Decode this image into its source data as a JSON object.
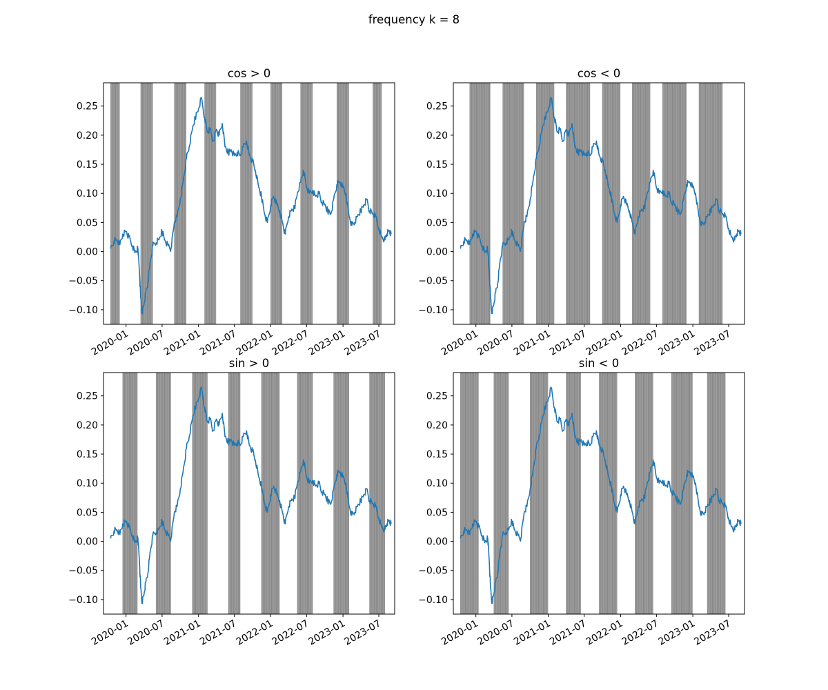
{
  "suptitle": "frequency k = 8",
  "colors": {
    "line": "#1f77b4",
    "shade": "#808080",
    "axes": "#000000"
  },
  "chart_data": [
    {
      "type": "line",
      "title": "cos > 0",
      "xlim": [
        "2019-09-09",
        "2023-09-19"
      ],
      "ylim": [
        -0.125,
        0.29
      ],
      "x_ticks": [
        "2020-01",
        "2020-07",
        "2021-01",
        "2021-07",
        "2022-01",
        "2022-07",
        "2023-01",
        "2023-07"
      ],
      "y_ticks": [
        "0.25",
        "0.20",
        "0.15",
        "0.10",
        "0.05",
        "0.00",
        "−0.05",
        "−0.10"
      ],
      "shaded_periods": [
        [
          "2019-10-15",
          "2019-11-30"
        ],
        [
          "2020-03-15",
          "2020-05-15"
        ],
        [
          "2020-09-01",
          "2020-10-31"
        ],
        [
          "2021-02-01",
          "2021-03-31"
        ],
        [
          "2021-08-01",
          "2021-09-30"
        ],
        [
          "2022-01-01",
          "2022-02-28"
        ],
        [
          "2022-06-01",
          "2022-07-31"
        ],
        [
          "2022-12-01",
          "2023-01-31"
        ],
        [
          "2023-06-01",
          "2023-07-15"
        ]
      ]
    },
    {
      "type": "line",
      "title": "cos < 0",
      "xlim": [
        "2019-09-09",
        "2023-09-19"
      ],
      "ylim": [
        -0.125,
        0.29
      ],
      "x_ticks": [
        "2020-01",
        "2020-07",
        "2021-01",
        "2021-07",
        "2022-01",
        "2022-07",
        "2023-01",
        "2023-07"
      ],
      "y_ticks": [
        "0.25",
        "0.20",
        "0.15",
        "0.10",
        "0.05",
        "0.00",
        "−0.05",
        "−0.10"
      ],
      "shaded_periods": [
        [
          "2019-12-01",
          "2020-03-14"
        ],
        [
          "2020-05-16",
          "2020-08-31"
        ],
        [
          "2020-11-01",
          "2021-01-31"
        ],
        [
          "2021-04-01",
          "2021-07-31"
        ],
        [
          "2021-10-01",
          "2021-12-31"
        ],
        [
          "2022-03-01",
          "2022-05-31"
        ],
        [
          "2022-08-01",
          "2022-11-30"
        ],
        [
          "2023-02-01",
          "2023-05-31"
        ]
      ]
    },
    {
      "type": "line",
      "title": "sin > 0",
      "xlim": [
        "2019-09-09",
        "2023-09-19"
      ],
      "ylim": [
        -0.125,
        0.29
      ],
      "x_ticks": [
        "2020-01",
        "2020-07",
        "2021-01",
        "2021-07",
        "2022-01",
        "2022-07",
        "2023-01",
        "2023-07"
      ],
      "y_ticks": [
        "0.25",
        "0.20",
        "0.15",
        "0.10",
        "0.05",
        "0.00",
        "−0.05",
        "−0.10"
      ],
      "shaded_periods": [
        [
          "2019-12-15",
          "2020-02-28"
        ],
        [
          "2020-06-01",
          "2020-08-15"
        ],
        [
          "2020-12-01",
          "2021-02-15"
        ],
        [
          "2021-06-01",
          "2021-07-31"
        ],
        [
          "2021-11-15",
          "2022-02-15"
        ],
        [
          "2022-05-15",
          "2022-08-01"
        ],
        [
          "2022-11-15",
          "2023-02-01"
        ],
        [
          "2023-05-15",
          "2023-08-01"
        ]
      ]
    },
    {
      "type": "line",
      "title": "sin < 0",
      "xlim": [
        "2019-09-09",
        "2023-09-19"
      ],
      "ylim": [
        -0.125,
        0.29
      ],
      "x_ticks": [
        "2020-01",
        "2020-07",
        "2021-01",
        "2021-07",
        "2022-01",
        "2022-07",
        "2023-01",
        "2023-07"
      ],
      "y_ticks": [
        "0.25",
        "0.20",
        "0.15",
        "0.10",
        "0.05",
        "0.00",
        "−0.05",
        "−0.10"
      ],
      "shaded_periods": [
        [
          "2019-10-15",
          "2020-01-15"
        ],
        [
          "2020-04-01",
          "2020-06-15"
        ],
        [
          "2020-10-01",
          "2020-12-31"
        ],
        [
          "2021-04-01",
          "2021-06-15"
        ],
        [
          "2021-09-15",
          "2021-12-15"
        ],
        [
          "2022-03-15",
          "2022-06-15"
        ],
        [
          "2022-09-15",
          "2022-12-31"
        ],
        [
          "2023-03-15",
          "2023-06-15"
        ]
      ]
    }
  ],
  "series": {
    "name": "",
    "x": [
      "2019-10-15",
      "2019-11-01",
      "2019-11-15",
      "2019-12-01",
      "2019-12-15",
      "2020-01-01",
      "2020-01-15",
      "2020-02-01",
      "2020-02-15",
      "2020-03-01",
      "2020-03-08",
      "2020-03-15",
      "2020-03-22",
      "2020-04-01",
      "2020-04-10",
      "2020-04-20",
      "2020-05-01",
      "2020-05-15",
      "2020-06-01",
      "2020-06-15",
      "2020-07-01",
      "2020-07-15",
      "2020-08-01",
      "2020-08-15",
      "2020-09-01",
      "2020-09-15",
      "2020-10-01",
      "2020-10-15",
      "2020-11-01",
      "2020-11-15",
      "2020-12-01",
      "2020-12-15",
      "2021-01-01",
      "2021-01-15",
      "2021-02-01",
      "2021-02-15",
      "2021-03-01",
      "2021-03-15",
      "2021-04-01",
      "2021-04-15",
      "2021-05-01",
      "2021-05-15",
      "2021-06-01",
      "2021-06-15",
      "2021-07-01",
      "2021-07-15",
      "2021-08-01",
      "2021-08-15",
      "2021-09-01",
      "2021-09-15",
      "2021-10-01",
      "2021-10-15",
      "2021-11-01",
      "2021-11-15",
      "2021-12-01",
      "2021-12-15",
      "2022-01-01",
      "2022-01-15",
      "2022-02-01",
      "2022-02-15",
      "2022-03-01",
      "2022-03-15",
      "2022-04-01",
      "2022-04-15",
      "2022-05-01",
      "2022-05-15",
      "2022-06-01",
      "2022-06-15",
      "2022-07-01",
      "2022-07-15",
      "2022-08-01",
      "2022-08-15",
      "2022-09-01",
      "2022-09-15",
      "2022-10-01",
      "2022-10-15",
      "2022-11-01",
      "2022-11-15",
      "2022-12-01",
      "2022-12-15",
      "2023-01-01",
      "2023-01-15",
      "2023-02-01",
      "2023-02-15",
      "2023-03-01",
      "2023-03-15",
      "2023-04-01",
      "2023-04-15",
      "2023-05-01",
      "2023-05-15",
      "2023-06-01",
      "2023-06-15",
      "2023-07-01",
      "2023-07-15",
      "2023-08-01",
      "2023-08-10",
      "2023-08-20",
      "2023-09-01"
    ],
    "values": [
      0.005,
      0.018,
      0.02,
      0.012,
      0.03,
      0.035,
      0.025,
      0.01,
      -0.002,
      0.005,
      -0.03,
      -0.08,
      -0.105,
      -0.09,
      -0.07,
      -0.055,
      -0.02,
      0.01,
      0.015,
      0.02,
      0.035,
      0.02,
      0.01,
      0.005,
      0.05,
      0.06,
      0.09,
      0.12,
      0.16,
      0.18,
      0.21,
      0.23,
      0.245,
      0.265,
      0.23,
      0.205,
      0.21,
      0.19,
      0.21,
      0.2,
      0.22,
      0.18,
      0.17,
      0.175,
      0.165,
      0.17,
      0.165,
      0.18,
      0.19,
      0.165,
      0.155,
      0.14,
      0.11,
      0.095,
      0.065,
      0.05,
      0.08,
      0.095,
      0.08,
      0.07,
      0.05,
      0.03,
      0.06,
      0.07,
      0.075,
      0.1,
      0.12,
      0.14,
      0.11,
      0.1,
      0.105,
      0.095,
      0.1,
      0.085,
      0.08,
      0.07,
      0.065,
      0.09,
      0.115,
      0.12,
      0.11,
      0.1,
      0.06,
      0.045,
      0.05,
      0.06,
      0.07,
      0.08,
      0.09,
      0.07,
      0.065,
      0.06,
      0.04,
      0.025,
      0.02,
      0.03,
      0.035,
      0.03
    ]
  }
}
